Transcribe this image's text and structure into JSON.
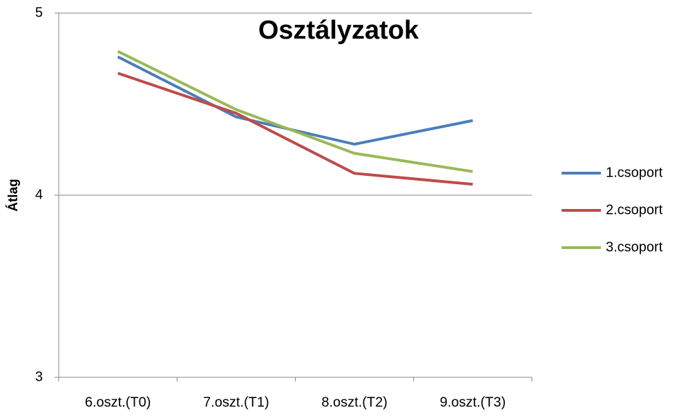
{
  "chart_data": {
    "type": "line",
    "title": "Osztályzatok",
    "y_label": "Átlag",
    "categories": [
      "6.oszt.(T0)",
      "7.oszt.(T1)",
      "8.oszt.(T2)",
      "9.oszt.(T3)"
    ],
    "series": [
      {
        "name": "1.csoport",
        "color": "#4a7ebb",
        "values": [
          4.76,
          4.43,
          4.28,
          4.41
        ]
      },
      {
        "name": "2.csoport",
        "color": "#be4b48",
        "values": [
          4.67,
          4.45,
          4.12,
          4.06
        ]
      },
      {
        "name": "3.csoport",
        "color": "#98b954",
        "values": [
          4.79,
          4.47,
          4.23,
          4.13
        ]
      }
    ],
    "ylim": [
      3,
      5
    ],
    "yticks": [
      3,
      4,
      5
    ],
    "grid": true,
    "legend": "right"
  }
}
